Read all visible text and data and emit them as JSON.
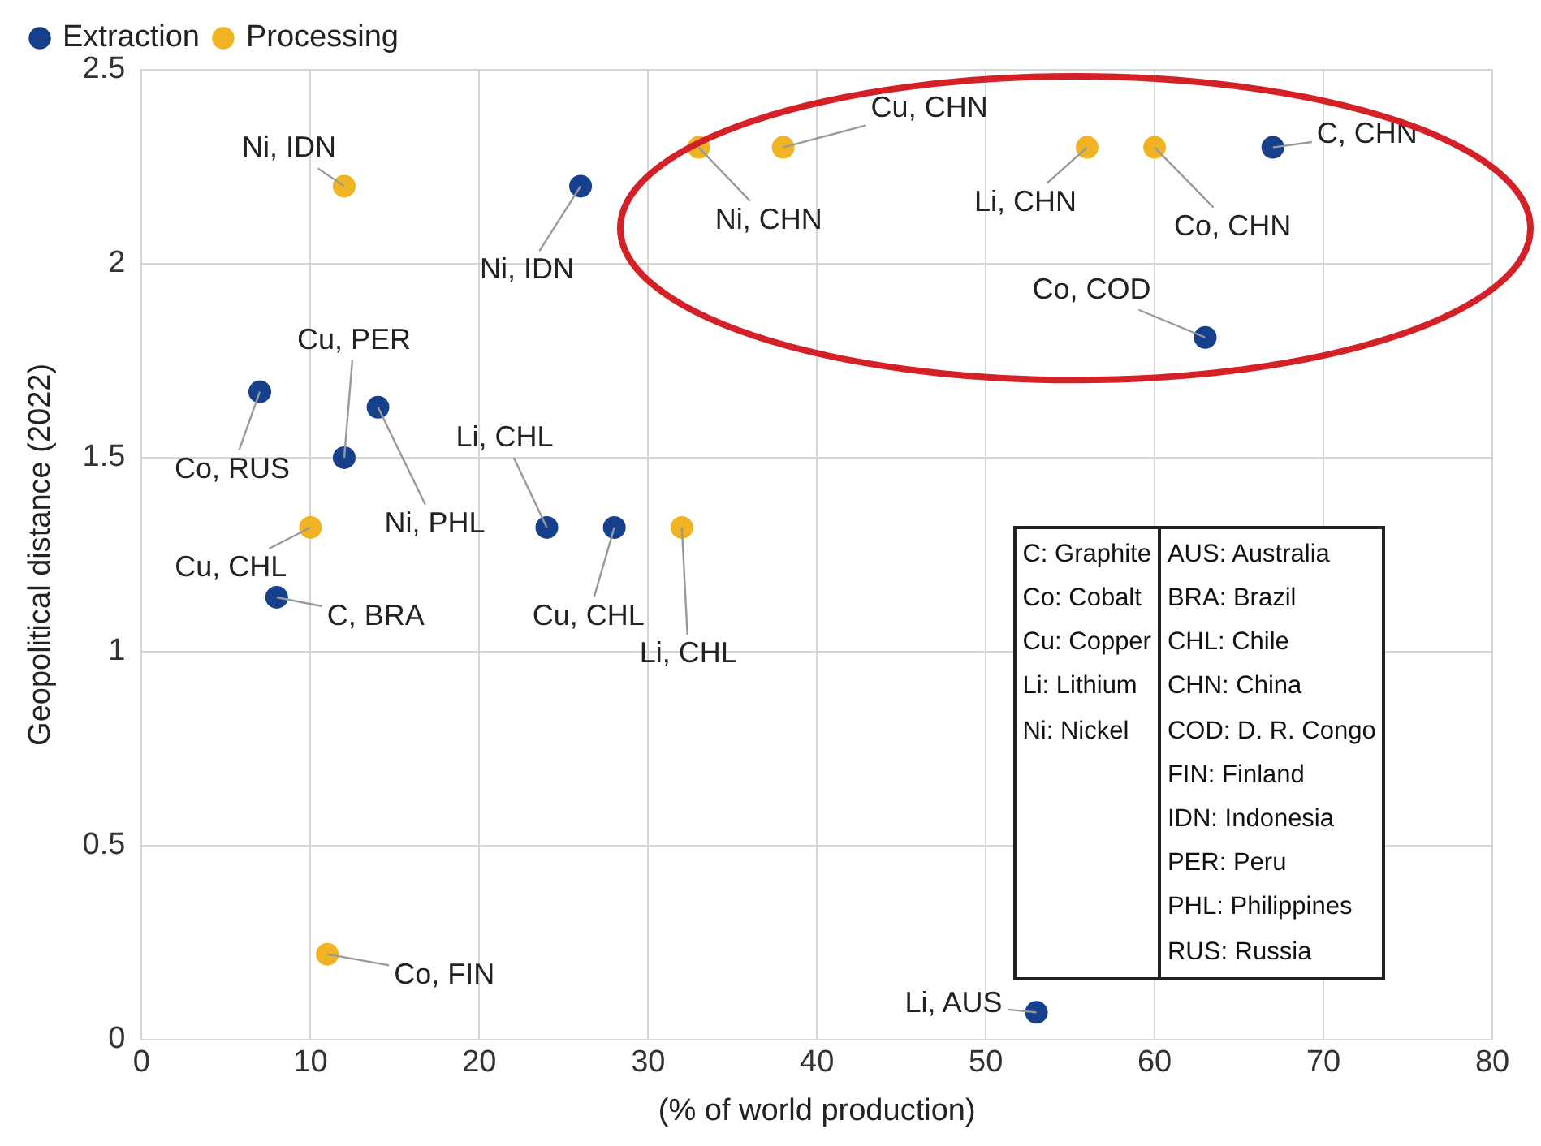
{
  "chart_data": {
    "type": "scatter",
    "xlabel": "(% of world production)",
    "ylabel": "Geopolitical distance (2022)",
    "xlim": [
      0,
      80
    ],
    "xticks": [
      0,
      10,
      20,
      30,
      40,
      50,
      60,
      70,
      80
    ],
    "ylim": [
      0,
      2.5
    ],
    "yticks": [
      0,
      0.5,
      1,
      1.5,
      2,
      2.5
    ],
    "grid": true,
    "legend": "top left",
    "marker": "circle",
    "series": [
      {
        "name": "Extraction",
        "color": "#163f8c",
        "x": [
          26,
          67,
          63,
          7,
          12,
          14,
          24,
          28,
          8,
          53
        ],
        "values": [
          2.2,
          2.3,
          1.81,
          1.67,
          1.5,
          1.63,
          1.32,
          1.32,
          1.14,
          0.07
        ]
      },
      {
        "name": "Processing",
        "color": "#f0b323",
        "x": [
          12,
          33,
          38,
          56,
          60,
          32,
          10,
          11
        ],
        "values": [
          2.2,
          2.3,
          2.3,
          2.3,
          2.3,
          1.32,
          1.32,
          0.22
        ]
      }
    ],
    "annotations": [
      {
        "text": "Ni, IDN",
        "x": 12,
        "y": 2.2
      },
      {
        "text": "Ni, IDN",
        "x": 26,
        "y": 2.2
      },
      {
        "text": "Ni, CHN",
        "x": 33,
        "y": 2.3
      },
      {
        "text": "Cu, CHN",
        "x": 38,
        "y": 2.3
      },
      {
        "text": "Li, CHN",
        "x": 56,
        "y": 2.3
      },
      {
        "text": "Co, CHN",
        "x": 60,
        "y": 2.3
      },
      {
        "text": "C, CHN",
        "x": 67,
        "y": 2.3
      },
      {
        "text": "Co, COD",
        "x": 63,
        "y": 1.81
      },
      {
        "text": "Cu, PER",
        "x": 12,
        "y": 1.5
      },
      {
        "text": "Co, RUS",
        "x": 7,
        "y": 1.67
      },
      {
        "text": "Ni, PHL",
        "x": 14,
        "y": 1.63
      },
      {
        "text": "Li, CHL",
        "x": 24,
        "y": 1.32
      },
      {
        "text": "Cu, CHL",
        "x": 28,
        "y": 1.32
      },
      {
        "text": "Li, CHL",
        "x": 32,
        "y": 1.32
      },
      {
        "text": "Cu, CHL",
        "x": 10,
        "y": 1.32
      },
      {
        "text": "C, BRA",
        "x": 8,
        "y": 1.14
      },
      {
        "text": "Co, FIN",
        "x": 11,
        "y": 0.22
      },
      {
        "text": "Li, AUS",
        "x": 53,
        "y": 0.07
      },
      "C: Graphite\nCo: Cobalt\nCu: Copper\nLi: Lithium\nNi: Nickel",
      "AUS: Australia\nBRA: Brazil\nCHL: Chile\nCHN: China\nCOD: D. R. Congo\nFIN: Finland\nIDN: Indonesia\nPER: Peru\nPHL: Philippines\nRUS: Russia"
    ]
  }
}
